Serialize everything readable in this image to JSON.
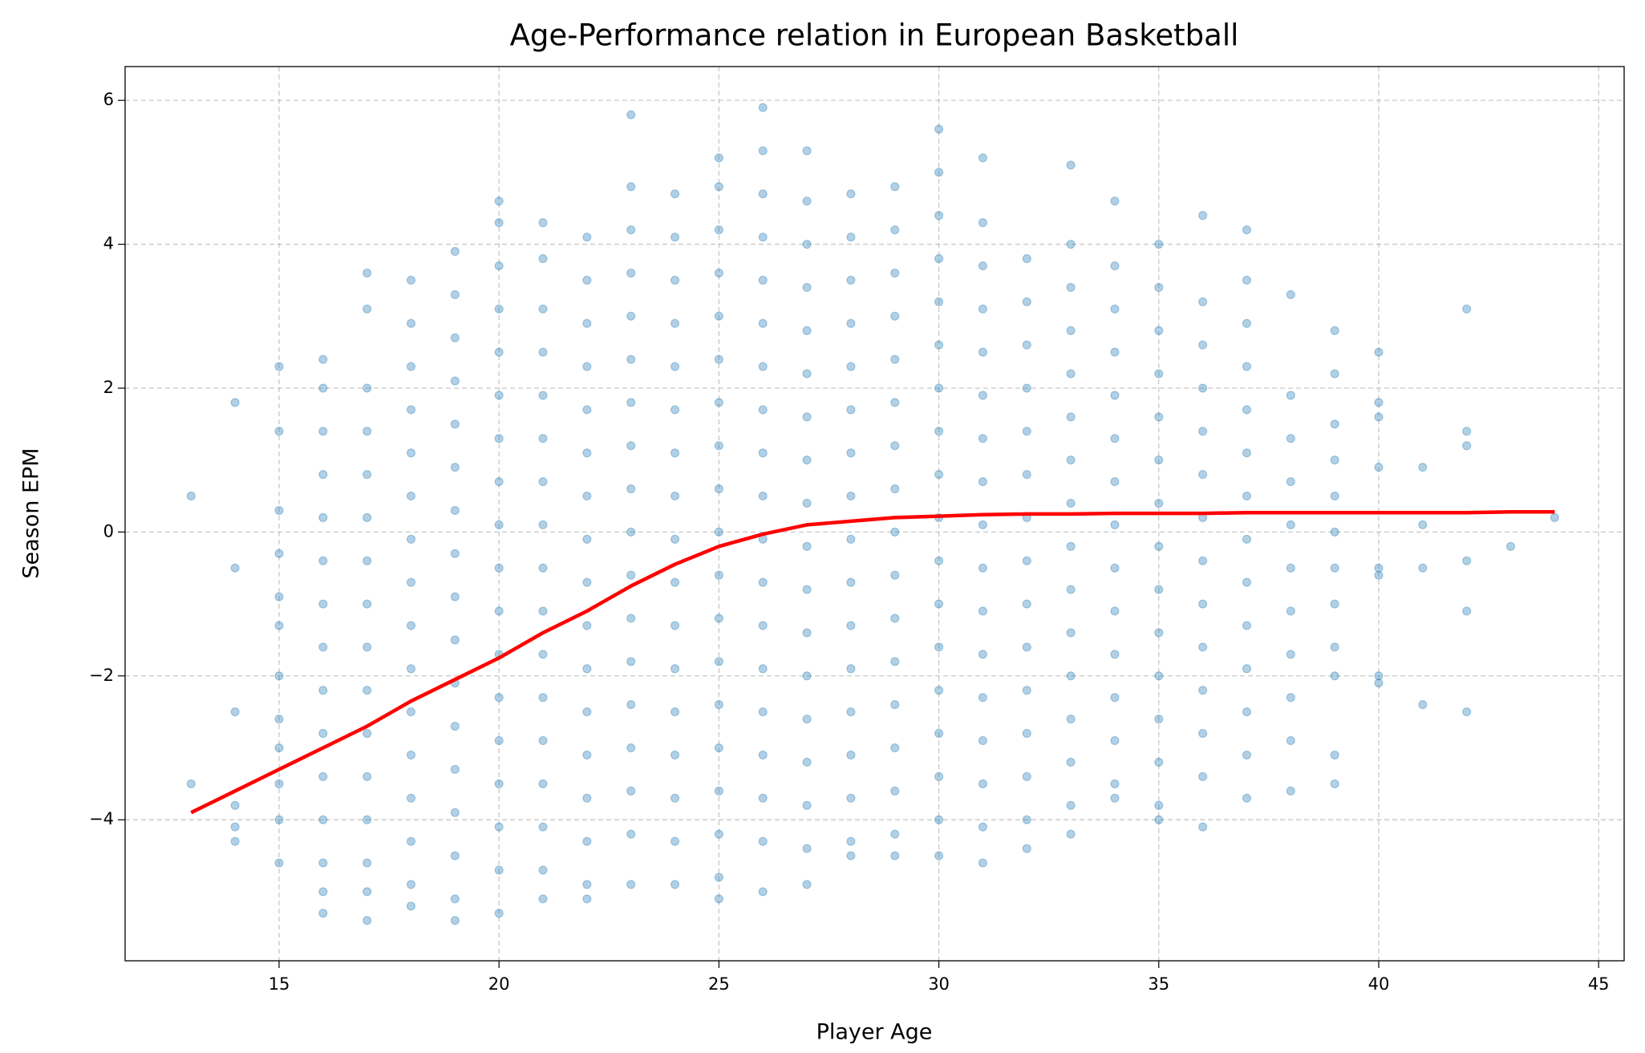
{
  "chart_data": {
    "type": "scatter",
    "title": "Age-Performance relation in European Basketball",
    "x_label": "Player Age",
    "y_label": "Season EPM",
    "xlim": [
      11.5,
      45.58
    ],
    "ylim": [
      -5.96,
      6.47
    ],
    "xticks": [
      15,
      20,
      25,
      30,
      35,
      40,
      45
    ],
    "yticks": [
      {
        "value": -4,
        "label": "−4"
      },
      {
        "value": -2,
        "label": "−2"
      },
      0,
      2,
      4,
      6
    ],
    "grid": true,
    "point_color": "#1f77b4",
    "points": [
      {
        "x": 13,
        "y": [
          0.5,
          -3.5
        ]
      },
      {
        "x": 14,
        "y": [
          1.8,
          -0.5,
          -2.5,
          -3.8,
          -4.1,
          -4.3
        ]
      },
      {
        "x": 15,
        "y": [
          2.3,
          1.4,
          0.3,
          -0.3,
          -0.9,
          -1.3,
          -2.0,
          -2.6,
          -3.0,
          -3.5,
          -4.0,
          -4.6
        ]
      },
      {
        "x": 16,
        "y": [
          2.4,
          2.0,
          1.4,
          0.8,
          0.2,
          -0.4,
          -1.0,
          -1.6,
          -2.2,
          -2.8,
          -3.4,
          -4.0,
          -4.6,
          -5.0,
          -5.3
        ]
      },
      {
        "x": 17,
        "y": [
          3.6,
          3.1,
          2.0,
          1.4,
          0.8,
          0.2,
          -0.4,
          -1.0,
          -1.6,
          -2.2,
          -2.8,
          -3.4,
          -4.0,
          -4.6,
          -5.0,
          -5.4
        ]
      },
      {
        "x": 18,
        "y": [
          3.5,
          2.9,
          2.3,
          1.7,
          1.1,
          0.5,
          -0.1,
          -0.7,
          -1.3,
          -1.9,
          -2.5,
          -3.1,
          -3.7,
          -4.3,
          -4.9,
          -5.2
        ]
      },
      {
        "x": 19,
        "y": [
          3.9,
          3.3,
          2.7,
          2.1,
          1.5,
          0.9,
          0.3,
          -0.3,
          -0.9,
          -1.5,
          -2.1,
          -2.7,
          -3.3,
          -3.9,
          -4.5,
          -5.1,
          -5.4
        ]
      },
      {
        "x": 20,
        "y": [
          4.6,
          4.3,
          3.7,
          3.1,
          2.5,
          1.9,
          1.3,
          0.7,
          0.1,
          -0.5,
          -1.1,
          -1.7,
          -2.3,
          -2.9,
          -3.5,
          -4.1,
          -4.7,
          -5.3
        ]
      },
      {
        "x": 21,
        "y": [
          4.3,
          3.8,
          3.1,
          2.5,
          1.9,
          1.3,
          0.7,
          0.1,
          -0.5,
          -1.1,
          -1.7,
          -2.3,
          -2.9,
          -3.5,
          -4.1,
          -4.7,
          -5.1
        ]
      },
      {
        "x": 22,
        "y": [
          4.1,
          3.5,
          2.9,
          2.3,
          1.7,
          1.1,
          0.5,
          -0.1,
          -0.7,
          -1.3,
          -1.9,
          -2.5,
          -3.1,
          -3.7,
          -4.3,
          -4.9,
          -5.1
        ]
      },
      {
        "x": 23,
        "y": [
          5.8,
          4.8,
          4.2,
          3.6,
          3.0,
          2.4,
          1.8,
          1.2,
          0.6,
          0,
          -0.6,
          -1.2,
          -1.8,
          -2.4,
          -3.0,
          -3.6,
          -4.2,
          -4.9
        ]
      },
      {
        "x": 24,
        "y": [
          4.7,
          4.1,
          3.5,
          2.9,
          2.3,
          1.7,
          1.1,
          0.5,
          -0.1,
          -0.7,
          -1.3,
          -1.9,
          -2.5,
          -3.1,
          -3.7,
          -4.3,
          -4.9
        ]
      },
      {
        "x": 25,
        "y": [
          5.2,
          4.8,
          4.2,
          3.6,
          3.0,
          2.4,
          1.8,
          1.2,
          0.6,
          0,
          -0.6,
          -1.2,
          -1.8,
          -2.4,
          -3.0,
          -3.6,
          -4.2,
          -4.8,
          -5.1
        ]
      },
      {
        "x": 26,
        "y": [
          5.9,
          5.3,
          4.7,
          4.1,
          3.5,
          2.9,
          2.3,
          1.7,
          1.1,
          0.5,
          -0.1,
          -0.7,
          -1.3,
          -1.9,
          -2.5,
          -3.1,
          -3.7,
          -4.3,
          -5.0
        ]
      },
      {
        "x": 27,
        "y": [
          5.3,
          4.6,
          4.0,
          3.4,
          2.8,
          2.2,
          1.6,
          1.0,
          0.4,
          -0.2,
          -0.8,
          -1.4,
          -2.0,
          -2.6,
          -3.2,
          -3.8,
          -4.4,
          -4.9
        ]
      },
      {
        "x": 28,
        "y": [
          4.7,
          4.1,
          3.5,
          2.9,
          2.3,
          1.7,
          1.1,
          0.5,
          -0.1,
          -0.7,
          -1.3,
          -1.9,
          -2.5,
          -3.1,
          -3.7,
          -4.3,
          -4.5
        ]
      },
      {
        "x": 29,
        "y": [
          4.8,
          4.2,
          3.6,
          3.0,
          2.4,
          1.8,
          1.2,
          0.6,
          0,
          -0.6,
          -1.2,
          -1.8,
          -2.4,
          -3.0,
          -3.6,
          -4.2,
          -4.5
        ]
      },
      {
        "x": 30,
        "y": [
          5.6,
          5.0,
          4.4,
          3.8,
          3.2,
          2.6,
          2.0,
          1.4,
          0.8,
          0.2,
          -0.4,
          -1.0,
          -1.6,
          -2.2,
          -2.8,
          -3.4,
          -4.0,
          -4.5
        ]
      },
      {
        "x": 31,
        "y": [
          5.2,
          4.3,
          3.7,
          3.1,
          2.5,
          1.9,
          1.3,
          0.7,
          0.1,
          -0.5,
          -1.1,
          -1.7,
          -2.3,
          -2.9,
          -3.5,
          -4.1,
          -4.6
        ]
      },
      {
        "x": 32,
        "y": [
          3.8,
          3.2,
          2.6,
          2.0,
          1.4,
          0.8,
          0.2,
          -0.4,
          -1.0,
          -1.6,
          -2.2,
          -2.8,
          -3.4,
          -4.0,
          -4.4
        ]
      },
      {
        "x": 33,
        "y": [
          5.1,
          4.0,
          3.4,
          2.8,
          2.2,
          1.6,
          1.0,
          0.4,
          -0.2,
          -0.8,
          -1.4,
          -2.0,
          -2.6,
          -3.2,
          -3.8,
          -4.2
        ]
      },
      {
        "x": 34,
        "y": [
          4.6,
          3.7,
          3.1,
          2.5,
          1.9,
          1.3,
          0.7,
          0.1,
          -0.5,
          -1.1,
          -1.7,
          -2.3,
          -2.9,
          -3.5,
          -3.7
        ]
      },
      {
        "x": 35,
        "y": [
          4.0,
          3.4,
          2.8,
          2.2,
          1.6,
          1.0,
          0.4,
          -0.2,
          -0.8,
          -1.4,
          -2.0,
          -2.6,
          -3.2,
          -3.8,
          -4.0
        ]
      },
      {
        "x": 36,
        "y": [
          4.4,
          3.2,
          2.6,
          2.0,
          1.4,
          0.8,
          0.2,
          -0.4,
          -1.0,
          -1.6,
          -2.2,
          -2.8,
          -3.4,
          -4.1
        ]
      },
      {
        "x": 37,
        "y": [
          4.2,
          3.5,
          2.9,
          2.3,
          1.7,
          1.1,
          0.5,
          -0.1,
          -0.7,
          -1.3,
          -1.9,
          -2.5,
          -3.1,
          -3.7
        ]
      },
      {
        "x": 38,
        "y": [
          3.3,
          1.9,
          1.3,
          0.7,
          0.1,
          -0.5,
          -1.1,
          -1.7,
          -2.3,
          -2.9,
          -3.6
        ]
      },
      {
        "x": 39,
        "y": [
          2.8,
          2.2,
          1.5,
          1.0,
          0.5,
          0,
          -0.5,
          -1.0,
          -1.6,
          -2.0,
          -3.1,
          -3.5
        ]
      },
      {
        "x": 40,
        "y": [
          2.5,
          1.8,
          1.6,
          0.9,
          -0.5,
          -0.6,
          -2.0,
          -2.1
        ]
      },
      {
        "x": 41,
        "y": [
          0.9,
          0.1,
          -0.5,
          -2.4
        ]
      },
      {
        "x": 42,
        "y": [
          3.1,
          1.4,
          1.2,
          -0.4,
          -1.1,
          -2.5
        ]
      },
      {
        "x": 43,
        "y": [
          -0.2
        ]
      },
      {
        "x": 44,
        "y": [
          0.2
        ]
      }
    ],
    "fit": {
      "color": "#ff0000",
      "x": [
        13,
        14,
        15,
        16,
        17,
        18,
        19,
        20,
        21,
        22,
        23,
        24,
        25,
        26,
        27,
        28,
        29,
        30,
        31,
        32,
        33,
        34,
        35,
        36,
        37,
        38,
        39,
        40,
        41,
        42,
        43,
        44
      ],
      "values": [
        -3.9,
        -3.6,
        -3.3,
        -3.0,
        -2.7,
        -2.35,
        -2.05,
        -1.75,
        -1.4,
        -1.1,
        -0.75,
        -0.45,
        -0.2,
        -0.03,
        0.1,
        0.15,
        0.2,
        0.22,
        0.24,
        0.25,
        0.25,
        0.26,
        0.26,
        0.26,
        0.27,
        0.27,
        0.27,
        0.27,
        0.27,
        0.27,
        0.28,
        0.28
      ]
    }
  }
}
